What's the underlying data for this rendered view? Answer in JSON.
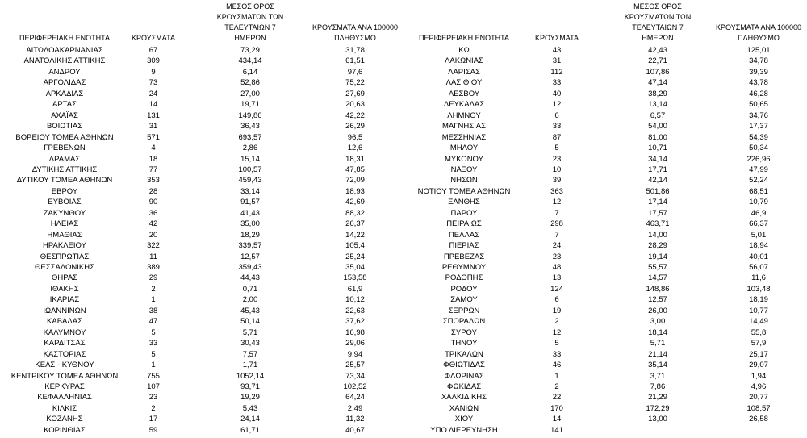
{
  "tables": [
    {
      "header": [
        "ΠΕΡΙΦΕΡΕΙΑΚΗ ΕΝΟΤΗΤΑ",
        "ΚΡΟΥΣΜΑΤΑ",
        "ΜΕΣΟΣ ΟΡΟΣ ΚΡΟΥΣΜΑΤΩΝ ΤΩΝ ΤΕΛΕΥΤΑΙΩΝ 7 ΗΜΕΡΩΝ",
        "ΚΡΟΥΣΜΑΤΑ ΑΝΑ 100000 ΠΛΗΘΥΣΜΟ"
      ],
      "rows": [
        [
          "ΑΙΤΩΛΟΑΚΑΡΝΑΝΙΑΣ",
          "67",
          "73,29",
          "31,78"
        ],
        [
          "ΑΝΑΤΟΛΙΚΗΣ ΑΤΤΙΚΗΣ",
          "309",
          "434,14",
          "61,51"
        ],
        [
          "ΑΝΔΡΟΥ",
          "9",
          "6,14",
          "97,6"
        ],
        [
          "ΑΡΓΟΛΙΔΑΣ",
          "73",
          "52,86",
          "75,22"
        ],
        [
          "ΑΡΚΑΔΙΑΣ",
          "24",
          "27,00",
          "27,69"
        ],
        [
          "ΑΡΤΑΣ",
          "14",
          "19,71",
          "20,63"
        ],
        [
          "ΑΧΑΪΑΣ",
          "131",
          "149,86",
          "42,22"
        ],
        [
          "ΒΟΙΩΤΙΑΣ",
          "31",
          "36,43",
          "26,29"
        ],
        [
          "ΒΟΡΕΙΟΥ ΤΟΜΕΑ ΑΘΗΝΩΝ",
          "571",
          "693,57",
          "96,5"
        ],
        [
          "ΓΡΕΒΕΝΩΝ",
          "4",
          "2,86",
          "12,6"
        ],
        [
          "ΔΡΑΜΑΣ",
          "18",
          "15,14",
          "18,31"
        ],
        [
          "ΔΥΤΙΚΗΣ ΑΤΤΙΚΗΣ",
          "77",
          "100,57",
          "47,85"
        ],
        [
          "ΔΥΤΙΚΟΥ ΤΟΜΕΑ ΑΘΗΝΩΝ",
          "353",
          "459,43",
          "72,09"
        ],
        [
          "ΕΒΡΟΥ",
          "28",
          "33,14",
          "18,93"
        ],
        [
          "ΕΥΒΟΙΑΣ",
          "90",
          "91,57",
          "42,69"
        ],
        [
          "ΖΑΚΥΝΘΟΥ",
          "36",
          "41,43",
          "88,32"
        ],
        [
          "ΗΛΕΙΑΣ",
          "42",
          "35,00",
          "26,37"
        ],
        [
          "ΗΜΑΘΙΑΣ",
          "20",
          "18,29",
          "14,22"
        ],
        [
          "ΗΡΑΚΛΕΙΟΥ",
          "322",
          "339,57",
          "105,4"
        ],
        [
          "ΘΕΣΠΡΩΤΙΑΣ",
          "11",
          "12,57",
          "25,24"
        ],
        [
          "ΘΕΣΣΑΛΟΝΙΚΗΣ",
          "389",
          "359,43",
          "35,04"
        ],
        [
          "ΘΗΡΑΣ",
          "29",
          "44,43",
          "153,58"
        ],
        [
          "ΙΘΑΚΗΣ",
          "2",
          "0,71",
          "61,9"
        ],
        [
          "ΙΚΑΡΙΑΣ",
          "1",
          "2,00",
          "10,12"
        ],
        [
          "ΙΩΑΝΝΙΝΩΝ",
          "38",
          "45,43",
          "22,63"
        ],
        [
          "ΚΑΒΑΛΑΣ",
          "47",
          "50,14",
          "37,62"
        ],
        [
          "ΚΑΛΥΜΝΟΥ",
          "5",
          "5,71",
          "16,98"
        ],
        [
          "ΚΑΡΔΙΤΣΑΣ",
          "33",
          "30,43",
          "29,06"
        ],
        [
          "ΚΑΣΤΟΡΙΑΣ",
          "5",
          "7,57",
          "9,94"
        ],
        [
          "ΚΕΑΣ - ΚΥΘΝΟΥ",
          "1",
          "1,71",
          "25,57"
        ],
        [
          "ΚΕΝΤΡΙΚΟΥ ΤΟΜΕΑ ΑΘΗΝΩΝ",
          "755",
          "1052,14",
          "73,34"
        ],
        [
          "ΚΕΡΚΥΡΑΣ",
          "107",
          "93,71",
          "102,52"
        ],
        [
          "ΚΕΦΑΛΛΗΝΙΑΣ",
          "23",
          "19,29",
          "64,24"
        ],
        [
          "ΚΙΛΚΙΣ",
          "2",
          "5,43",
          "2,49"
        ],
        [
          "ΚΟΖΑΝΗΣ",
          "17",
          "24,14",
          "11,32"
        ],
        [
          "ΚΟΡΙΝΘΙΑΣ",
          "59",
          "61,71",
          "40,67"
        ]
      ]
    },
    {
      "header": [
        "ΠΕΡΙΦΕΡΕΙΑΚΗ ΕΝΟΤΗΤΑ",
        "ΚΡΟΥΣΜΑΤΑ",
        "ΜΕΣΟΣ ΟΡΟΣ ΚΡΟΥΣΜΑΤΩΝ ΤΩΝ ΤΕΛΕΥΤΑΙΩΝ 7 ΗΜΕΡΩΝ",
        "ΚΡΟΥΣΜΑΤΑ ΑΝΑ 100000 ΠΛΗΘΥΣΜΟ"
      ],
      "rows": [
        [
          "ΚΩ",
          "43",
          "42,43",
          "125,01"
        ],
        [
          "ΛΑΚΩΝΙΑΣ",
          "31",
          "22,71",
          "34,78"
        ],
        [
          "ΛΑΡΙΣΑΣ",
          "112",
          "107,86",
          "39,39"
        ],
        [
          "ΛΑΣΙΘΙΟΥ",
          "33",
          "47,14",
          "43,78"
        ],
        [
          "ΛΕΣΒΟΥ",
          "40",
          "38,29",
          "46,28"
        ],
        [
          "ΛΕΥΚΑΔΑΣ",
          "12",
          "13,14",
          "50,65"
        ],
        [
          "ΛΗΜΝΟΥ",
          "6",
          "6,57",
          "34,76"
        ],
        [
          "ΜΑΓΝΗΣΙΑΣ",
          "33",
          "54,00",
          "17,37"
        ],
        [
          "ΜΕΣΣΗΝΙΑΣ",
          "87",
          "81,00",
          "54,39"
        ],
        [
          "ΜΗΛΟΥ",
          "5",
          "10,71",
          "50,34"
        ],
        [
          "ΜΥΚΟΝΟΥ",
          "23",
          "34,14",
          "226,96"
        ],
        [
          "ΝΑΞΟΥ",
          "10",
          "17,71",
          "47,99"
        ],
        [
          "ΝΗΣΩΝ",
          "39",
          "42,14",
          "52,24"
        ],
        [
          "ΝΟΤΙΟΥ ΤΟΜΕΑ ΑΘΗΝΩΝ",
          "363",
          "501,86",
          "68,51"
        ],
        [
          "ΞΑΝΘΗΣ",
          "12",
          "17,14",
          "10,79"
        ],
        [
          "ΠΑΡΟΥ",
          "7",
          "17,57",
          "46,9"
        ],
        [
          "ΠΕΙΡΑΙΩΣ",
          "298",
          "463,71",
          "66,37"
        ],
        [
          "ΠΕΛΛΑΣ",
          "7",
          "14,00",
          "5,01"
        ],
        [
          "ΠΙΕΡΙΑΣ",
          "24",
          "28,29",
          "18,94"
        ],
        [
          "ΠΡΕΒΕΖΑΣ",
          "23",
          "19,14",
          "40,01"
        ],
        [
          "ΡΕΘΥΜΝΟΥ",
          "48",
          "55,57",
          "56,07"
        ],
        [
          "ΡΟΔΟΠΗΣ",
          "13",
          "14,57",
          "11,6"
        ],
        [
          "ΡΟΔΟΥ",
          "124",
          "148,86",
          "103,48"
        ],
        [
          "ΣΑΜΟΥ",
          "6",
          "12,57",
          "18,19"
        ],
        [
          "ΣΕΡΡΩΝ",
          "19",
          "26,00",
          "10,77"
        ],
        [
          "ΣΠΟΡΑΔΩΝ",
          "2",
          "3,00",
          "14,49"
        ],
        [
          "ΣΥΡΟΥ",
          "12",
          "18,14",
          "55,8"
        ],
        [
          "ΤΗΝΟΥ",
          "5",
          "5,71",
          "57,9"
        ],
        [
          "ΤΡΙΚΑΛΩΝ",
          "33",
          "21,14",
          "25,17"
        ],
        [
          "ΦΘΙΩΤΙΔΑΣ",
          "46",
          "35,14",
          "29,07"
        ],
        [
          "ΦΛΩΡΙΝΑΣ",
          "1",
          "3,71",
          "1,94"
        ],
        [
          "ΦΩΚΙΔΑΣ",
          "2",
          "7,86",
          "4,96"
        ],
        [
          "ΧΑΛΚΙΔΙΚΗΣ",
          "22",
          "21,29",
          "20,77"
        ],
        [
          "ΧΑΝΙΩΝ",
          "170",
          "172,29",
          "108,57"
        ],
        [
          "ΧΙΟΥ",
          "14",
          "13,00",
          "26,58"
        ],
        [
          "ΥΠΟ ΔΙΕΡΕΥΝΗΣΗ",
          "141"
        ]
      ]
    }
  ]
}
